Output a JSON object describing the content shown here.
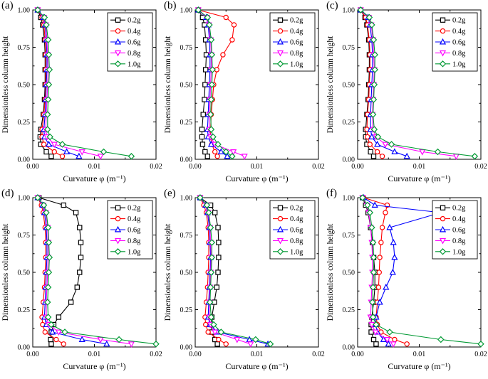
{
  "figure": {
    "background": "#ffffff"
  },
  "colors": {
    "s02g": "#000000",
    "s04g": "#ff0000",
    "s06g": "#0000ff",
    "s08g": "#ff00ff",
    "s10g": "#009933"
  },
  "chart_data": [
    {
      "type": "line",
      "panel_label": "(a)",
      "xlabel": "Curvature φ (m⁻¹)",
      "ylabel": "Dimensionless column height",
      "xlim": [
        0,
        0.02
      ],
      "ylim": [
        0,
        1
      ],
      "xticks": [
        0,
        0.01,
        0.02
      ],
      "xtick_labels": [
        "0.00",
        "0.01",
        "0.02"
      ],
      "yticks": [
        0,
        0.25,
        0.5,
        0.75,
        1.0
      ],
      "ytick_labels": [
        "0.00",
        "0.25",
        "0.50",
        "0.75",
        "1.00"
      ],
      "grid": false,
      "legend_position": "top-right",
      "y": [
        1.0,
        0.95,
        0.9,
        0.8,
        0.7,
        0.6,
        0.5,
        0.4,
        0.3,
        0.2,
        0.15,
        0.1,
        0.05,
        0.02
      ],
      "series": [
        {
          "name": "0.2g",
          "color": "#000000",
          "marker": "square",
          "x": [
            0.0008,
            0.0013,
            0.0016,
            0.0019,
            0.002,
            0.002,
            0.002,
            0.0019,
            0.0017,
            0.0013,
            0.0012,
            0.0013,
            0.0022,
            0.003
          ]
        },
        {
          "name": "0.4g",
          "color": "#ff0000",
          "marker": "circle",
          "x": [
            0.0008,
            0.0015,
            0.0018,
            0.002,
            0.0021,
            0.0021,
            0.0021,
            0.002,
            0.0018,
            0.0015,
            0.0015,
            0.0018,
            0.0035,
            0.0048
          ]
        },
        {
          "name": "0.6g",
          "color": "#0000ff",
          "marker": "triangle-up",
          "x": [
            0.0008,
            0.0017,
            0.002,
            0.0022,
            0.0023,
            0.0023,
            0.0022,
            0.0021,
            0.002,
            0.0018,
            0.0019,
            0.0026,
            0.0055,
            0.0075
          ]
        },
        {
          "name": "0.8g",
          "color": "#ff00ff",
          "marker": "triangle-down",
          "x": [
            0.0008,
            0.0018,
            0.0021,
            0.0023,
            0.0024,
            0.0025,
            0.0024,
            0.0023,
            0.0022,
            0.0021,
            0.0023,
            0.0035,
            0.008,
            0.011
          ]
        },
        {
          "name": "1.0g",
          "color": "#009933",
          "marker": "diamond",
          "x": [
            0.0008,
            0.0019,
            0.0022,
            0.0025,
            0.0026,
            0.0027,
            0.0026,
            0.0025,
            0.0024,
            0.0024,
            0.0028,
            0.0048,
            0.0115,
            0.016
          ]
        }
      ]
    },
    {
      "type": "line",
      "panel_label": "(b)",
      "xlabel": "Curvature φ (m⁻¹)",
      "ylabel": "Dimensionless column height",
      "xlim": [
        0,
        0.02
      ],
      "ylim": [
        0,
        1
      ],
      "xticks": [
        0,
        0.01,
        0.02
      ],
      "xtick_labels": [
        "0.00",
        "0.01",
        "0.02"
      ],
      "yticks": [
        0,
        0.25,
        0.5,
        0.75,
        1.0
      ],
      "ytick_labels": [
        "0.00",
        "0.25",
        "0.50",
        "0.75",
        "1.00"
      ],
      "grid": false,
      "legend_position": "top-right",
      "y": [
        1.0,
        0.95,
        0.9,
        0.8,
        0.7,
        0.6,
        0.5,
        0.4,
        0.3,
        0.2,
        0.15,
        0.1,
        0.05,
        0.02
      ],
      "series": [
        {
          "name": "0.2g",
          "color": "#000000",
          "marker": "square",
          "x": [
            0.0005,
            0.0012,
            0.0015,
            0.0017,
            0.0018,
            0.0017,
            0.0016,
            0.0015,
            0.0013,
            0.0011,
            0.0011,
            0.0012,
            0.0016,
            0.002
          ]
        },
        {
          "name": "0.4g",
          "color": "#ff0000",
          "marker": "circle",
          "x": [
            0.0005,
            0.005,
            0.0063,
            0.006,
            0.0045,
            0.0035,
            0.003,
            0.0028,
            0.0026,
            0.0025,
            0.0025,
            0.0027,
            0.0032,
            0.0036
          ]
        },
        {
          "name": "0.6g",
          "color": "#0000ff",
          "marker": "triangle-up",
          "x": [
            0.0005,
            0.0018,
            0.0021,
            0.0023,
            0.0024,
            0.0024,
            0.0023,
            0.0022,
            0.0021,
            0.002,
            0.0021,
            0.0026,
            0.0042,
            0.0052
          ]
        },
        {
          "name": "0.8g",
          "color": "#ff00ff",
          "marker": "triangle-down",
          "x": [
            0.0005,
            0.0019,
            0.0022,
            0.0025,
            0.0026,
            0.0026,
            0.0025,
            0.0024,
            0.0023,
            0.0023,
            0.0025,
            0.0032,
            0.0062,
            0.008
          ]
        },
        {
          "name": "1.0g",
          "color": "#009933",
          "marker": "diamond",
          "x": [
            0.0005,
            0.002,
            0.0023,
            0.0026,
            0.0027,
            0.0028,
            0.0027,
            0.0026,
            0.0025,
            0.0026,
            0.0029,
            0.0037,
            0.005,
            0.006
          ]
        }
      ]
    },
    {
      "type": "line",
      "panel_label": "(c)",
      "xlabel": "Curvature φ (m⁻¹)",
      "ylabel": "Dimensionless column height",
      "xlim": [
        0,
        0.02
      ],
      "ylim": [
        0,
        1
      ],
      "xticks": [
        0,
        0.01,
        0.02
      ],
      "xtick_labels": [
        "0.00",
        "0.01",
        "0.02"
      ],
      "yticks": [
        0,
        0.25,
        0.5,
        0.75,
        1.0
      ],
      "ytick_labels": [
        "0.00",
        "0.25",
        "0.50",
        "0.75",
        "1.00"
      ],
      "grid": false,
      "legend_position": "top-right",
      "y": [
        1.0,
        0.95,
        0.9,
        0.8,
        0.7,
        0.6,
        0.5,
        0.4,
        0.3,
        0.2,
        0.15,
        0.1,
        0.05,
        0.02
      ],
      "series": [
        {
          "name": "0.2g",
          "color": "#000000",
          "marker": "square",
          "x": [
            0.0005,
            0.0012,
            0.0015,
            0.0018,
            0.0019,
            0.0019,
            0.0018,
            0.0017,
            0.0015,
            0.0013,
            0.0013,
            0.0015,
            0.0021,
            0.0026
          ]
        },
        {
          "name": "0.4g",
          "color": "#ff0000",
          "marker": "circle",
          "x": [
            0.0005,
            0.0013,
            0.0016,
            0.0019,
            0.002,
            0.002,
            0.0019,
            0.0018,
            0.0016,
            0.0015,
            0.0016,
            0.002,
            0.0032,
            0.004
          ]
        },
        {
          "name": "0.6g",
          "color": "#0000ff",
          "marker": "triangle-up",
          "x": [
            0.0005,
            0.0017,
            0.002,
            0.0023,
            0.0024,
            0.0024,
            0.0023,
            0.0022,
            0.0021,
            0.0021,
            0.0023,
            0.0032,
            0.006,
            0.008
          ]
        },
        {
          "name": "0.8g",
          "color": "#ff00ff",
          "marker": "triangle-down",
          "x": [
            0.0005,
            0.0018,
            0.0022,
            0.0025,
            0.0026,
            0.0027,
            0.0026,
            0.0025,
            0.0024,
            0.0025,
            0.003,
            0.0045,
            0.0105,
            0.016
          ]
        },
        {
          "name": "1.0g",
          "color": "#009933",
          "marker": "diamond",
          "x": [
            0.0005,
            0.0019,
            0.0023,
            0.0026,
            0.0028,
            0.0028,
            0.0027,
            0.0026,
            0.0025,
            0.0027,
            0.0033,
            0.0055,
            0.013,
            0.019
          ]
        }
      ]
    },
    {
      "type": "line",
      "panel_label": "(d)",
      "xlabel": "Curvature φ (m⁻¹)",
      "ylabel": "Dimensionless column height",
      "xlim": [
        0,
        0.02
      ],
      "ylim": [
        0,
        1
      ],
      "xticks": [
        0,
        0.01,
        0.02
      ],
      "xtick_labels": [
        "0.00",
        "0.01",
        "0.02"
      ],
      "yticks": [
        0,
        0.25,
        0.5,
        0.75,
        1.0
      ],
      "ytick_labels": [
        "0.00",
        "0.25",
        "0.50",
        "0.75",
        "1.00"
      ],
      "grid": false,
      "legend_position": "top-right",
      "y": [
        1.0,
        0.95,
        0.9,
        0.8,
        0.7,
        0.6,
        0.5,
        0.4,
        0.3,
        0.2,
        0.15,
        0.1,
        0.05,
        0.02
      ],
      "series": [
        {
          "name": "0.2g",
          "color": "#000000",
          "marker": "square",
          "x": [
            0.001,
            0.005,
            0.007,
            0.0076,
            0.0078,
            0.0078,
            0.0076,
            0.0072,
            0.0062,
            0.0042,
            0.0034,
            0.003,
            0.0029,
            0.003
          ]
        },
        {
          "name": "0.4g",
          "color": "#ff0000",
          "marker": "circle",
          "x": [
            0.0008,
            0.0014,
            0.0017,
            0.002,
            0.0021,
            0.0021,
            0.002,
            0.0019,
            0.0017,
            0.0015,
            0.0016,
            0.002,
            0.0038,
            0.005
          ]
        },
        {
          "name": "0.6g",
          "color": "#0000ff",
          "marker": "triangle-up",
          "x": [
            0.0008,
            0.0016,
            0.0019,
            0.0022,
            0.0023,
            0.0023,
            0.0022,
            0.0021,
            0.002,
            0.0019,
            0.0022,
            0.0032,
            0.008,
            0.012
          ]
        },
        {
          "name": "0.8g",
          "color": "#ff00ff",
          "marker": "triangle-down",
          "x": [
            0.0008,
            0.0017,
            0.0021,
            0.0024,
            0.0025,
            0.0025,
            0.0024,
            0.0023,
            0.0022,
            0.0022,
            0.0026,
            0.0042,
            0.011,
            0.016
          ]
        },
        {
          "name": "1.0g",
          "color": "#009933",
          "marker": "diamond",
          "x": [
            0.0008,
            0.0018,
            0.0022,
            0.0025,
            0.0026,
            0.0027,
            0.0026,
            0.0025,
            0.0024,
            0.0025,
            0.003,
            0.0052,
            0.014,
            0.02
          ]
        }
      ]
    },
    {
      "type": "line",
      "panel_label": "(e)",
      "xlabel": "Curvature φ (m⁻¹)",
      "ylabel": "Dimensionless column height",
      "xlim": [
        0,
        0.02
      ],
      "ylim": [
        0,
        1
      ],
      "xticks": [
        0,
        0.01,
        0.02
      ],
      "xtick_labels": [
        "0.00",
        "0.01",
        "0.02"
      ],
      "yticks": [
        0,
        0.25,
        0.5,
        0.75,
        1.0
      ],
      "ytick_labels": [
        "0.00",
        "0.25",
        "0.50",
        "0.75",
        "1.00"
      ],
      "grid": false,
      "legend_position": "top-right",
      "y": [
        1.0,
        0.95,
        0.9,
        0.8,
        0.7,
        0.6,
        0.5,
        0.4,
        0.3,
        0.2,
        0.15,
        0.1,
        0.05,
        0.02
      ],
      "series": [
        {
          "name": "0.2g",
          "color": "#000000",
          "marker": "square",
          "x": [
            0.0008,
            0.0025,
            0.0032,
            0.0037,
            0.0038,
            0.0038,
            0.0037,
            0.0035,
            0.0031,
            0.0027,
            0.0026,
            0.0027,
            0.0032,
            0.0036
          ]
        },
        {
          "name": "0.4g",
          "color": "#ff0000",
          "marker": "circle",
          "x": [
            0.0008,
            0.0014,
            0.0018,
            0.0021,
            0.0022,
            0.0022,
            0.0021,
            0.002,
            0.0018,
            0.0016,
            0.0017,
            0.0021,
            0.0038,
            0.005
          ]
        },
        {
          "name": "0.6g",
          "color": "#0000ff",
          "marker": "triangle-up",
          "x": [
            0.0008,
            0.0017,
            0.002,
            0.0023,
            0.0024,
            0.0025,
            0.0024,
            0.0023,
            0.0022,
            0.0021,
            0.0024,
            0.0036,
            0.0088,
            0.0118
          ]
        },
        {
          "name": "0.8g",
          "color": "#ff00ff",
          "marker": "triangle-down",
          "x": [
            0.0008,
            0.0018,
            0.0021,
            0.0024,
            0.0025,
            0.0026,
            0.0025,
            0.0024,
            0.0023,
            0.0023,
            0.0025,
            0.0032,
            0.0068,
            0.009
          ]
        },
        {
          "name": "1.0g",
          "color": "#009933",
          "marker": "diamond",
          "x": [
            0.0008,
            0.0019,
            0.0022,
            0.0025,
            0.0027,
            0.0027,
            0.0026,
            0.0025,
            0.0024,
            0.0026,
            0.003,
            0.0042,
            0.0098,
            0.0122
          ]
        }
      ]
    },
    {
      "type": "line",
      "panel_label": "(f)",
      "xlabel": "Curvature φ (m⁻¹)",
      "ylabel": "Dimensionless column height",
      "xlim": [
        0,
        0.02
      ],
      "ylim": [
        0,
        1
      ],
      "xticks": [
        0,
        0.01,
        0.02
      ],
      "xtick_labels": [
        "0.00",
        "0.01",
        "0.02"
      ],
      "yticks": [
        0,
        0.25,
        0.5,
        0.75,
        1.0
      ],
      "ytick_labels": [
        "0.00",
        "0.25",
        "0.50",
        "0.75",
        "1.00"
      ],
      "grid": false,
      "legend_position": "top-right",
      "y": [
        1.0,
        0.95,
        0.9,
        0.8,
        0.7,
        0.6,
        0.5,
        0.4,
        0.3,
        0.2,
        0.15,
        0.1,
        0.05,
        0.02
      ],
      "series": [
        {
          "name": "0.2g",
          "color": "#000000",
          "marker": "square",
          "x": [
            0.0008,
            0.0013,
            0.0017,
            0.0021,
            0.0024,
            0.0026,
            0.0028,
            0.0028,
            0.0026,
            0.0023,
            0.0022,
            0.0022,
            0.0026,
            0.003
          ]
        },
        {
          "name": "0.4g",
          "color": "#ff0000",
          "marker": "circle",
          "x": [
            0.001,
            0.0048,
            0.0045,
            0.004,
            0.0038,
            0.0036,
            0.0035,
            0.0034,
            0.0032,
            0.003,
            0.0032,
            0.0038,
            0.006,
            0.008
          ]
        },
        {
          "name": "0.6g",
          "color": "#0000ff",
          "marker": "triangle-up",
          "x": [
            0.001,
            0.0028,
            0.0135,
            0.0052,
            0.0058,
            0.006,
            0.0057,
            0.0046,
            0.0036,
            0.003,
            0.0029,
            0.0032,
            0.0042,
            0.005
          ]
        },
        {
          "name": "0.8g",
          "color": "#ff00ff",
          "marker": "triangle-down",
          "x": [
            0.0008,
            0.0015,
            0.0018,
            0.0021,
            0.0023,
            0.0024,
            0.0024,
            0.0023,
            0.0022,
            0.0021,
            0.0023,
            0.0029,
            0.0048,
            0.0058
          ]
        },
        {
          "name": "1.0g",
          "color": "#009933",
          "marker": "diamond",
          "x": [
            0.0008,
            0.0016,
            0.002,
            0.0023,
            0.0025,
            0.0026,
            0.0026,
            0.0025,
            0.0024,
            0.0025,
            0.003,
            0.0052,
            0.0135,
            0.02
          ]
        }
      ]
    }
  ]
}
